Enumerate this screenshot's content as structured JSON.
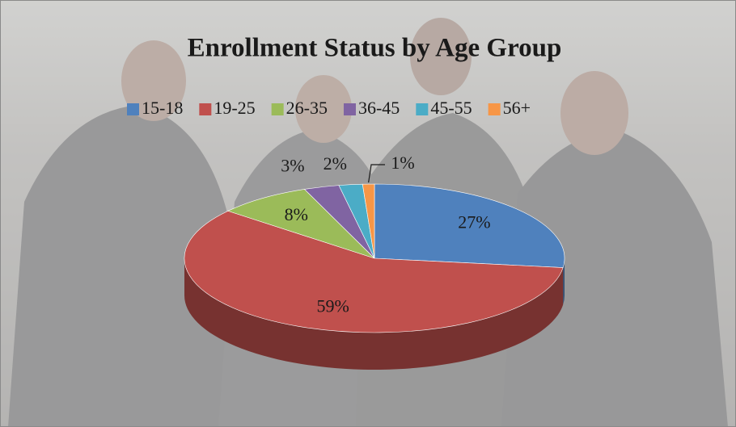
{
  "chart_data": {
    "type": "pie",
    "title": "Enrollment Status by Age Group",
    "categories": [
      "15-18",
      "19-25",
      "26-35",
      "36-45",
      "45-55",
      "56+"
    ],
    "values": [
      27,
      59,
      8,
      3,
      2,
      1
    ],
    "value_labels": [
      "27%",
      "59%",
      "8%",
      "3%",
      "2%",
      "1%"
    ],
    "colors": [
      "#4f81bd",
      "#c0504d",
      "#9bbb59",
      "#8064a2",
      "#4bacc6",
      "#f79646"
    ],
    "legend": "top"
  }
}
